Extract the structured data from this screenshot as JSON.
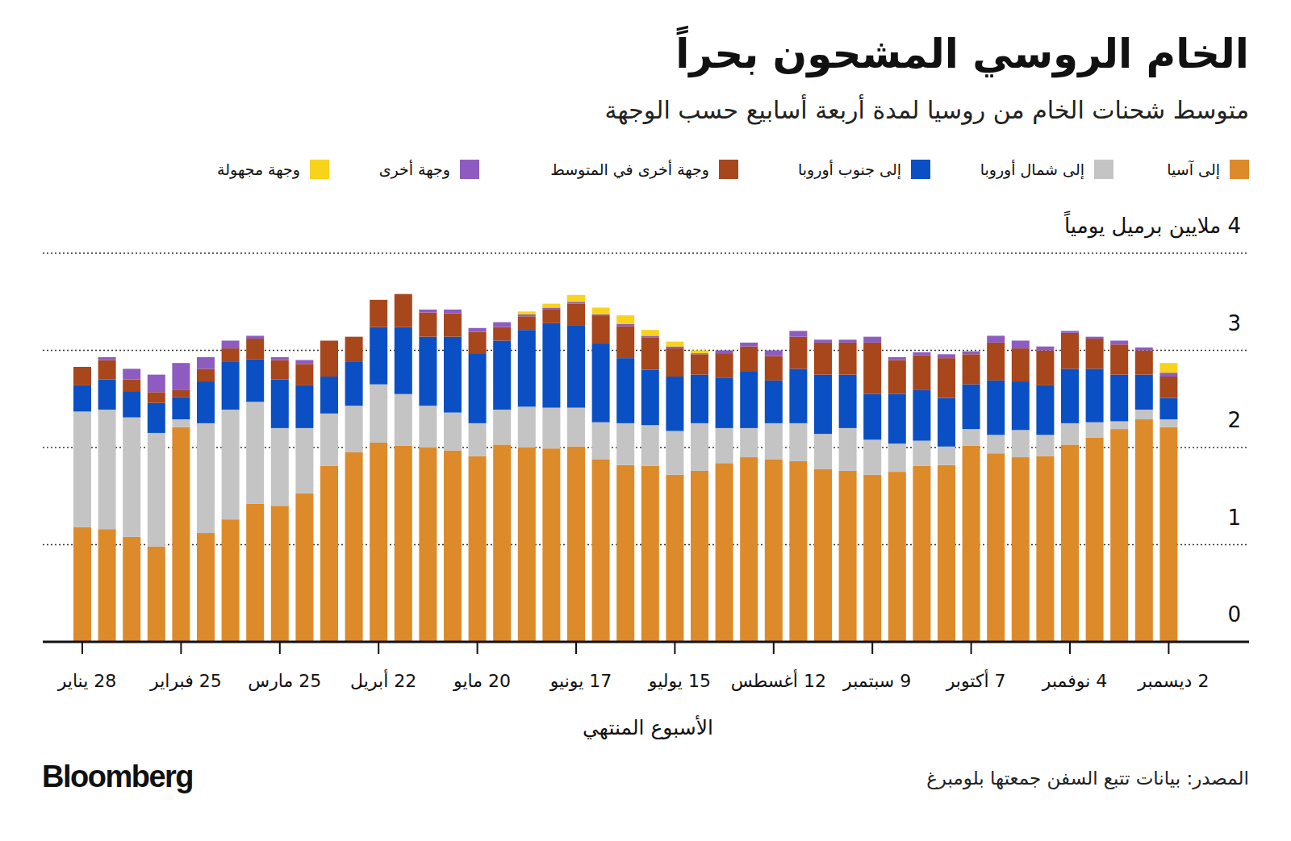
{
  "chart_data": {
    "type": "bar",
    "stacked": true,
    "title": "الخام الروسي المشحون بحراً",
    "subtitle": "متوسط شحنات الخام من روسيا لمدة أربعة أسابيع حسب الوجهة",
    "x_label": "الأسبوع المنتهي",
    "source": "المصدر: بيانات تتبع السفن جمعتها بلومبرغ",
    "brand": "Bloomberg",
    "grid": true,
    "ylim": [
      0,
      4
    ],
    "yticks": [
      0,
      1,
      2,
      3,
      {
        "value": 4,
        "label": "4 ملايين برميل يومياً"
      }
    ],
    "categories": [
      "28 يناير",
      null,
      null,
      null,
      "25 فبراير",
      null,
      null,
      null,
      "25 مارس",
      null,
      null,
      null,
      "22 أبريل",
      null,
      null,
      null,
      "20 مايو",
      null,
      null,
      null,
      "17 يونيو",
      null,
      null,
      null,
      "15 يوليو",
      null,
      null,
      null,
      "12 أغسطس",
      null,
      null,
      null,
      "9 سبتمبر",
      null,
      null,
      null,
      "7 أكتوبر",
      null,
      null,
      null,
      "4 نوفمبر",
      null,
      null,
      null,
      "2 ديسمبر"
    ],
    "series": [
      {
        "name": "إلى آسيا",
        "color": "#dd8a2a",
        "values": [
          1.18,
          1.16,
          1.08,
          0.98,
          2.21,
          1.12,
          1.26,
          1.42,
          1.4,
          1.53,
          1.81,
          1.95,
          2.05,
          2.02,
          2.0,
          1.97,
          1.91,
          2.03,
          2.0,
          1.99,
          2.01,
          1.88,
          1.82,
          1.81,
          1.72,
          1.76,
          1.84,
          1.9,
          1.88,
          1.86,
          1.78,
          1.76,
          1.72,
          1.75,
          1.81,
          1.82,
          2.02,
          1.94,
          1.9,
          1.91,
          2.03,
          2.1,
          2.19,
          2.29,
          2.21
        ]
      },
      {
        "name": "إلى شمال أوروبا",
        "color": "#c4c4c4",
        "values": [
          1.19,
          1.23,
          1.23,
          1.17,
          0.08,
          1.13,
          1.13,
          1.05,
          0.8,
          0.67,
          0.54,
          0.48,
          0.6,
          0.53,
          0.43,
          0.39,
          0.34,
          0.36,
          0.42,
          0.42,
          0.4,
          0.38,
          0.43,
          0.42,
          0.45,
          0.49,
          0.36,
          0.3,
          0.37,
          0.39,
          0.36,
          0.44,
          0.36,
          0.29,
          0.26,
          0.19,
          0.17,
          0.19,
          0.28,
          0.22,
          0.22,
          0.16,
          0.08,
          0.1,
          0.08
        ]
      },
      {
        "name": "إلى جنوب أوروبا",
        "color": "#0a50c4",
        "values": [
          0.27,
          0.31,
          0.27,
          0.31,
          0.23,
          0.43,
          0.49,
          0.44,
          0.5,
          0.44,
          0.38,
          0.45,
          0.59,
          0.69,
          0.71,
          0.78,
          0.72,
          0.71,
          0.79,
          0.87,
          0.85,
          0.81,
          0.67,
          0.57,
          0.56,
          0.5,
          0.52,
          0.58,
          0.44,
          0.56,
          0.61,
          0.55,
          0.47,
          0.51,
          0.52,
          0.5,
          0.46,
          0.56,
          0.5,
          0.51,
          0.56,
          0.55,
          0.48,
          0.36,
          0.22
        ]
      },
      {
        "name": "وجهة أخرى في المتوسط",
        "color": "#a8461c",
        "values": [
          0.19,
          0.2,
          0.12,
          0.11,
          0.07,
          0.13,
          0.14,
          0.21,
          0.2,
          0.22,
          0.37,
          0.26,
          0.28,
          0.34,
          0.25,
          0.24,
          0.22,
          0.14,
          0.14,
          0.14,
          0.22,
          0.29,
          0.33,
          0.33,
          0.29,
          0.21,
          0.25,
          0.26,
          0.25,
          0.33,
          0.33,
          0.33,
          0.53,
          0.35,
          0.36,
          0.41,
          0.31,
          0.39,
          0.34,
          0.36,
          0.37,
          0.31,
          0.31,
          0.25,
          0.22
        ]
      },
      {
        "name": "وجهة أخرى",
        "color": "#8e5cc0",
        "values": [
          0,
          0.03,
          0.11,
          0.18,
          0.28,
          0.12,
          0.08,
          0.03,
          0.03,
          0.04,
          0,
          0,
          0,
          0,
          0.03,
          0.04,
          0.04,
          0.05,
          0.02,
          0.02,
          0.02,
          0.01,
          0.02,
          0.02,
          0.02,
          0.01,
          0.03,
          0.04,
          0.06,
          0.06,
          0.03,
          0.03,
          0.06,
          0.03,
          0.03,
          0.04,
          0.03,
          0.07,
          0.08,
          0.04,
          0.02,
          0.02,
          0.04,
          0.03,
          0.04
        ]
      },
      {
        "name": "وجهة مجهولة",
        "color": "#f7d31c",
        "values": [
          0,
          0,
          0,
          0,
          0,
          0,
          0,
          0,
          0,
          0,
          0,
          0,
          0,
          0,
          0,
          0,
          0,
          0,
          0.03,
          0.04,
          0.07,
          0.07,
          0.09,
          0.06,
          0.05,
          0.03,
          0,
          0,
          0,
          0,
          0,
          0,
          0,
          0,
          0,
          0,
          0,
          0,
          0,
          0,
          0,
          0,
          0,
          0,
          0.1
        ]
      }
    ]
  }
}
